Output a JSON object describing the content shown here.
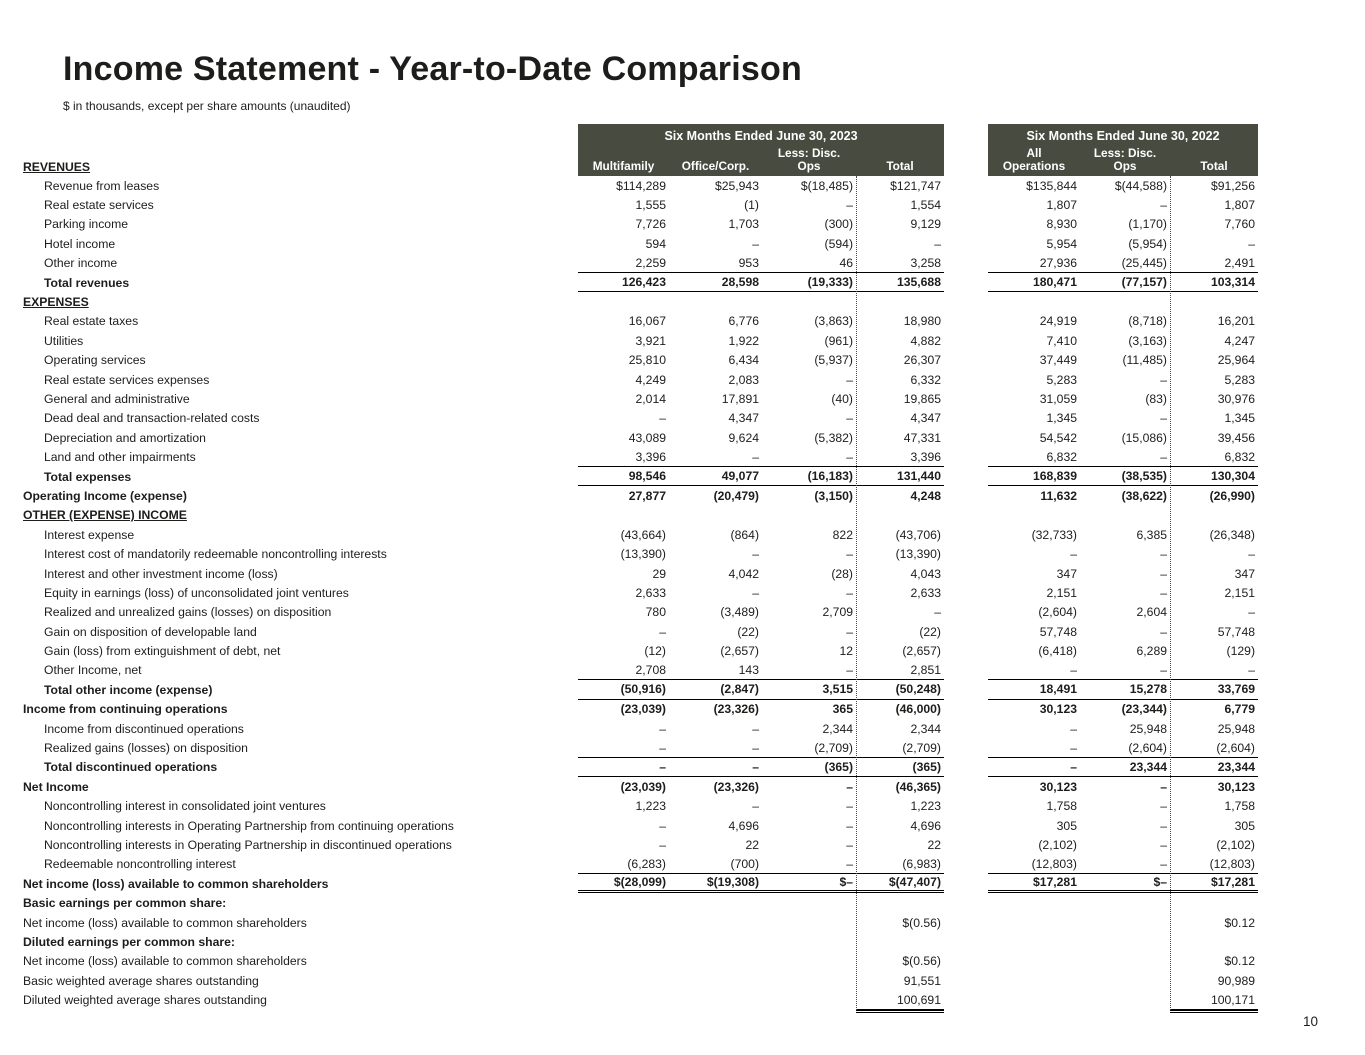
{
  "page": {
    "title": "Income Statement - Year-to-Date Comparison",
    "subtitle": "$ in thousands, except per share amounts (unaudited)",
    "page_number": "10"
  },
  "colors": {
    "header_bg": "#484c40",
    "text": "#1d1d1b"
  },
  "table": {
    "revenues_label": "REVENUES",
    "groups": [
      {
        "title": "Six Months Ended June 30, 2023",
        "cols": [
          [
            "Multifamily"
          ],
          [
            "Office/Corp."
          ],
          [
            "Less: Disc.",
            "Ops"
          ],
          [
            "Total"
          ]
        ]
      },
      {
        "title": "Six Months Ended June 30, 2022",
        "cols": [
          [
            "All",
            "Operations"
          ],
          [
            "Less: Disc.",
            "Ops"
          ],
          [
            "Total"
          ]
        ]
      }
    ],
    "rows": [
      {
        "label": "Revenue from leases",
        "indent": 1,
        "bold": false,
        "section": false,
        "rule": "",
        "values": [
          "$114,289",
          "$25,943",
          "$(18,485)",
          "$121,747",
          "$135,844",
          "$(44,588)",
          "$91,256"
        ]
      },
      {
        "label": "Real estate services",
        "indent": 1,
        "bold": false,
        "section": false,
        "rule": "",
        "values": [
          "1,555",
          "(1)",
          "–",
          "1,554",
          "1,807",
          "–",
          "1,807"
        ]
      },
      {
        "label": "Parking income",
        "indent": 1,
        "bold": false,
        "section": false,
        "rule": "",
        "values": [
          "7,726",
          "1,703",
          "(300)",
          "9,129",
          "8,930",
          "(1,170)",
          "7,760"
        ]
      },
      {
        "label": "Hotel income",
        "indent": 1,
        "bold": false,
        "section": false,
        "rule": "",
        "values": [
          "594",
          "–",
          "(594)",
          "–",
          "5,954",
          "(5,954)",
          "–"
        ]
      },
      {
        "label": "Other income",
        "indent": 1,
        "bold": false,
        "section": false,
        "rule": "s",
        "values": [
          "2,259",
          "953",
          "46",
          "3,258",
          "27,936",
          "(25,445)",
          "2,491"
        ]
      },
      {
        "label": "Total revenues",
        "indent": 1,
        "bold": true,
        "section": false,
        "rule": "s",
        "values": [
          "126,423",
          "28,598",
          "(19,333)",
          "135,688",
          "180,471",
          "(77,157)",
          "103,314"
        ]
      },
      {
        "label": "EXPENSES",
        "indent": 0,
        "bold": true,
        "section": true,
        "rule": "",
        "values": null
      },
      {
        "label": "Real estate taxes",
        "indent": 1,
        "bold": false,
        "section": false,
        "rule": "",
        "values": [
          "16,067",
          "6,776",
          "(3,863)",
          "18,980",
          "24,919",
          "(8,718)",
          "16,201"
        ]
      },
      {
        "label": "Utilities",
        "indent": 1,
        "bold": false,
        "section": false,
        "rule": "",
        "values": [
          "3,921",
          "1,922",
          "(961)",
          "4,882",
          "7,410",
          "(3,163)",
          "4,247"
        ]
      },
      {
        "label": "Operating services",
        "indent": 1,
        "bold": false,
        "section": false,
        "rule": "",
        "values": [
          "25,810",
          "6,434",
          "(5,937)",
          "26,307",
          "37,449",
          "(11,485)",
          "25,964"
        ]
      },
      {
        "label": "Real estate services expenses",
        "indent": 1,
        "bold": false,
        "section": false,
        "rule": "",
        "values": [
          "4,249",
          "2,083",
          "–",
          "6,332",
          "5,283",
          "–",
          "5,283"
        ]
      },
      {
        "label": "General and administrative",
        "indent": 1,
        "bold": false,
        "section": false,
        "rule": "",
        "values": [
          "2,014",
          "17,891",
          "(40)",
          "19,865",
          "31,059",
          "(83)",
          "30,976"
        ]
      },
      {
        "label": "Dead deal and transaction-related costs",
        "indent": 1,
        "bold": false,
        "section": false,
        "rule": "",
        "values": [
          "–",
          "4,347",
          "–",
          "4,347",
          "1,345",
          "–",
          "1,345"
        ]
      },
      {
        "label": "Depreciation and amortization",
        "indent": 1,
        "bold": false,
        "section": false,
        "rule": "",
        "values": [
          "43,089",
          "9,624",
          "(5,382)",
          "47,331",
          "54,542",
          "(15,086)",
          "39,456"
        ]
      },
      {
        "label": "Land and other impairments",
        "indent": 1,
        "bold": false,
        "section": false,
        "rule": "s",
        "values": [
          "3,396",
          "–",
          "–",
          "3,396",
          "6,832",
          "–",
          "6,832"
        ]
      },
      {
        "label": "Total expenses",
        "indent": 1,
        "bold": true,
        "section": false,
        "rule": "s",
        "values": [
          "98,546",
          "49,077",
          "(16,183)",
          "131,440",
          "168,839",
          "(38,535)",
          "130,304"
        ]
      },
      {
        "label": "Operating Income (expense)",
        "indent": 0,
        "bold": true,
        "section": false,
        "rule": "",
        "values": [
          "27,877",
          "(20,479)",
          "(3,150)",
          "4,248",
          "11,632",
          "(38,622)",
          "(26,990)"
        ]
      },
      {
        "label": "OTHER (EXPENSE) INCOME",
        "indent": 0,
        "bold": true,
        "section": true,
        "rule": "",
        "values": null
      },
      {
        "label": "Interest expense",
        "indent": 1,
        "bold": false,
        "section": false,
        "rule": "",
        "values": [
          "(43,664)",
          "(864)",
          "822",
          "(43,706)",
          "(32,733)",
          "6,385",
          "(26,348)"
        ]
      },
      {
        "label": "Interest cost of mandatorily redeemable noncontrolling interests",
        "indent": 1,
        "bold": false,
        "section": false,
        "rule": "",
        "values": [
          "(13,390)",
          "–",
          "–",
          "(13,390)",
          "–",
          "–",
          "–"
        ]
      },
      {
        "label": "Interest and other investment income (loss)",
        "indent": 1,
        "bold": false,
        "section": false,
        "rule": "",
        "values": [
          "29",
          "4,042",
          "(28)",
          "4,043",
          "347",
          "–",
          "347"
        ]
      },
      {
        "label": "Equity in earnings (loss) of unconsolidated joint ventures",
        "indent": 1,
        "bold": false,
        "section": false,
        "rule": "",
        "values": [
          "2,633",
          "–",
          "–",
          "2,633",
          "2,151",
          "–",
          "2,151"
        ]
      },
      {
        "label": "Realized and unrealized gains (losses) on disposition",
        "indent": 1,
        "bold": false,
        "section": false,
        "rule": "",
        "values": [
          "780",
          "(3,489)",
          "2,709",
          "–",
          "(2,604)",
          "2,604",
          "–"
        ]
      },
      {
        "label": "Gain on disposition of developable land",
        "indent": 1,
        "bold": false,
        "section": false,
        "rule": "",
        "values": [
          "–",
          "(22)",
          "–",
          "(22)",
          "57,748",
          "–",
          "57,748"
        ]
      },
      {
        "label": "Gain (loss) from extinguishment of debt, net",
        "indent": 1,
        "bold": false,
        "section": false,
        "rule": "",
        "values": [
          "(12)",
          "(2,657)",
          "12",
          "(2,657)",
          "(6,418)",
          "6,289",
          "(129)"
        ]
      },
      {
        "label": "Other Income, net",
        "indent": 1,
        "bold": false,
        "section": false,
        "rule": "s",
        "values": [
          "2,708",
          "143",
          "–",
          "2,851",
          "–",
          "–",
          "–"
        ]
      },
      {
        "label": "Total other income (expense)",
        "indent": 1,
        "bold": true,
        "section": false,
        "rule": "s",
        "values": [
          "(50,916)",
          "(2,847)",
          "3,515",
          "(50,248)",
          "18,491",
          "15,278",
          "33,769"
        ]
      },
      {
        "label": "Income from continuing operations",
        "indent": 0,
        "bold": true,
        "section": false,
        "rule": "",
        "values": [
          "(23,039)",
          "(23,326)",
          "365",
          "(46,000)",
          "30,123",
          "(23,344)",
          "6,779"
        ]
      },
      {
        "label": "Income from discontinued operations",
        "indent": 1,
        "bold": false,
        "section": false,
        "rule": "",
        "values": [
          "–",
          "–",
          "2,344",
          "2,344",
          "–",
          "25,948",
          "25,948"
        ]
      },
      {
        "label": "Realized gains (losses) on disposition",
        "indent": 1,
        "bold": false,
        "section": false,
        "rule": "s",
        "values": [
          "–",
          "–",
          "(2,709)",
          "(2,709)",
          "–",
          "(2,604)",
          "(2,604)"
        ]
      },
      {
        "label": "Total discontinued operations",
        "indent": 1,
        "bold": true,
        "section": false,
        "rule": "s",
        "values": [
          "–",
          "–",
          "(365)",
          "(365)",
          "–",
          "23,344",
          "23,344"
        ]
      },
      {
        "label": "Net Income",
        "indent": 0,
        "bold": true,
        "section": false,
        "rule": "",
        "values": [
          "(23,039)",
          "(23,326)",
          "–",
          "(46,365)",
          "30,123",
          "–",
          "30,123"
        ]
      },
      {
        "label": "Noncontrolling interest in consolidated joint ventures",
        "indent": 1,
        "bold": false,
        "section": false,
        "rule": "",
        "values": [
          "1,223",
          "–",
          "–",
          "1,223",
          "1,758",
          "–",
          "1,758"
        ]
      },
      {
        "label": "Noncontrolling interests in Operating Partnership from continuing operations",
        "indent": 1,
        "bold": false,
        "section": false,
        "rule": "",
        "values": [
          "–",
          "4,696",
          "–",
          "4,696",
          "305",
          "–",
          "305"
        ]
      },
      {
        "label": "Noncontrolling interests in Operating Partnership in discontinued operations",
        "indent": 1,
        "bold": false,
        "section": false,
        "rule": "",
        "values": [
          "–",
          "22",
          "–",
          "22",
          "(2,102)",
          "–",
          "(2,102)"
        ]
      },
      {
        "label": "Redeemable noncontrolling interest",
        "indent": 1,
        "bold": false,
        "section": false,
        "rule": "s",
        "values": [
          "(6,283)",
          "(700)",
          "–",
          "(6,983)",
          "(12,803)",
          "–",
          "(12,803)"
        ]
      },
      {
        "label": "Net income (loss) available to common shareholders",
        "indent": 0,
        "bold": true,
        "section": false,
        "rule": "d",
        "values": [
          "$(28,099)",
          "$(19,308)",
          "$–",
          "$(47,407)",
          "$17,281",
          "$–",
          "$17,281"
        ]
      },
      {
        "label": "Basic earnings per common share:",
        "indent": 0,
        "bold": true,
        "section": false,
        "rule": "",
        "values": null
      },
      {
        "label": "Net income (loss) available to common shareholders",
        "indent": 0,
        "bold": false,
        "section": false,
        "rule": "",
        "values": [
          "",
          "",
          "",
          "$(0.56)",
          "",
          "",
          "$0.12"
        ]
      },
      {
        "label": "Diluted earnings per common share:",
        "indent": 0,
        "bold": true,
        "section": false,
        "rule": "",
        "values": null
      },
      {
        "label": "Net income (loss) available to common shareholders",
        "indent": 0,
        "bold": false,
        "section": false,
        "rule": "",
        "values": [
          "",
          "",
          "",
          "$(0.56)",
          "",
          "",
          "$0.12"
        ]
      },
      {
        "label": "Basic weighted average shares outstanding",
        "indent": 0,
        "bold": false,
        "section": false,
        "rule": "",
        "values": [
          "",
          "",
          "",
          "91,551",
          "",
          "",
          "90,989"
        ]
      },
      {
        "label": "Diluted weighted average shares outstanding",
        "indent": 0,
        "bold": false,
        "section": false,
        "rule": "st",
        "values": [
          "",
          "",
          "",
          "100,691",
          "",
          "",
          "100,171"
        ]
      }
    ]
  }
}
